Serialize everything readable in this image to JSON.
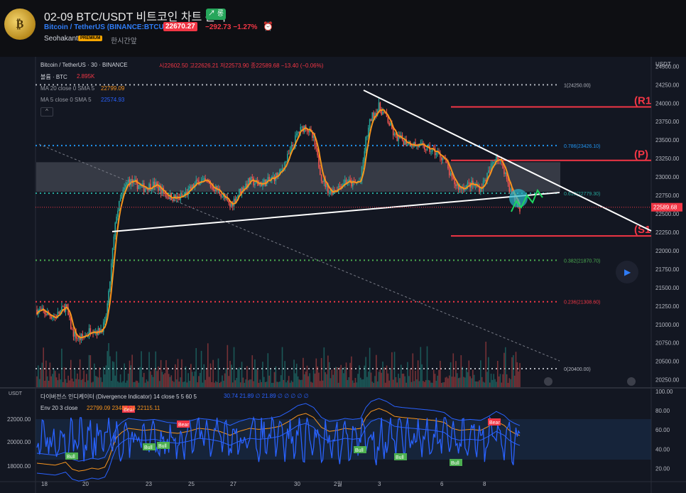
{
  "header": {
    "avatar_text": "₿",
    "title": "02-09 BTC/USDT 비트코인 차트 분석",
    "trend_badge": "↗ 롱",
    "symbol_line": "Bitcoin / TetherUS (BINANCE:BTCUSDT)",
    "last_price": "22670.27",
    "change": "−292.73  −1.27%",
    "alarm_icon": "⏰",
    "author": "Seohakant",
    "premium_label": "PREMIUM",
    "time_ago": "한시간앞"
  },
  "legend": {
    "instrument": "Bitcoin / TetherUS · 30 · BINANCE",
    "ohlc": "시22602.50 고22626.21 저22573.90 종22589.68 −13.40 (−0.06%)",
    "volume_label": "볼륨 · BTC",
    "volume_value": "2.895K",
    "ma20_label": "MA 20 close 0 SMA 5",
    "ma20_value": "22799.09",
    "ma5_label": "MA 5 close 0 SMA 5",
    "ma5_value": "22574.93",
    "collapse_icon": "^"
  },
  "indicator": {
    "name": "다이버전스 인디케이터 (Divergence Indicator)  14 close 5 5 60 5",
    "values": "30.74  21.89  ∅  21.89  ∅  ∅  ∅  ∅  ∅",
    "env_label": "Env 20 3 close",
    "env_values": "22799.09  23483.06  22115.11"
  },
  "colors": {
    "accent": "#f7a600",
    "up": "#26a69a",
    "down": "#f23645",
    "ma": "#f7941d",
    "osc": "#2962ff",
    "bg": "#131722",
    "price_tag": "#f23645"
  },
  "chart_data": {
    "type": "candlestick",
    "price_axis_label": "USDT",
    "ylim": [
      20150,
      24600
    ],
    "y_ticks": [
      "24500.00",
      "24250.00",
      "24000.00",
      "23750.00",
      "23500.00",
      "23250.00",
      "23000.00",
      "22750.00",
      "22500.00",
      "22250.00",
      "22000.00",
      "21750.00",
      "21500.00",
      "21250.00",
      "21000.00",
      "20750.00",
      "20500.00",
      "20250.00"
    ],
    "current_price_label": "22589.68",
    "current_price": 22589.68,
    "x_ticks": [
      "18",
      "20",
      "23",
      "25",
      "27",
      "30",
      "2월",
      "3",
      "6",
      "8"
    ],
    "fib_levels": [
      {
        "label": "1(24250.00)",
        "value": 24250.0
      },
      {
        "label": "0.786(23426.10)",
        "value": 23426.1
      },
      {
        "label": "0.618(22779.30)",
        "value": 22779.3
      },
      {
        "label": "0.382(21870.70)",
        "value": 21870.7
      },
      {
        "label": "0.236(21308.60)",
        "value": 21308.6
      },
      {
        "label": "0(20400.00)",
        "value": 20400.0
      }
    ],
    "zones": [
      {
        "label": "(R1",
        "value": 23950
      },
      {
        "label": "(P)",
        "value": 23225
      },
      {
        "label": "(S1",
        "value": 22200
      }
    ],
    "box": {
      "low": 22800,
      "high": 23200
    },
    "price_series_anchor": [
      [
        0,
        21200
      ],
      [
        14,
        21100
      ],
      [
        22,
        21250
      ],
      [
        27,
        20900
      ],
      [
        32,
        20800
      ],
      [
        37,
        20850
      ],
      [
        42,
        20950
      ],
      [
        47,
        20900
      ],
      [
        52,
        21000
      ],
      [
        55,
        21400
      ],
      [
        58,
        22000
      ],
      [
        61,
        22500
      ],
      [
        65,
        22750
      ],
      [
        70,
        22950
      ],
      [
        76,
        22900
      ],
      [
        82,
        22850
      ],
      [
        90,
        22900
      ],
      [
        100,
        22750
      ],
      [
        108,
        22700
      ],
      [
        116,
        22800
      ],
      [
        124,
        22950
      ],
      [
        132,
        22900
      ],
      [
        140,
        22800
      ],
      [
        148,
        22600
      ],
      [
        155,
        22800
      ],
      [
        163,
        22950
      ],
      [
        170,
        22900
      ],
      [
        178,
        22950
      ],
      [
        186,
        23050
      ],
      [
        193,
        23300
      ],
      [
        200,
        23600
      ],
      [
        206,
        23700
      ],
      [
        212,
        23500
      ],
      [
        218,
        23000
      ],
      [
        224,
        22800
      ],
      [
        230,
        22850
      ],
      [
        236,
        22950
      ],
      [
        242,
        22900
      ],
      [
        248,
        22950
      ],
      [
        252,
        23500
      ],
      [
        256,
        23800
      ],
      [
        262,
        23950
      ],
      [
        268,
        23800
      ],
      [
        274,
        23550
      ],
      [
        280,
        23500
      ],
      [
        288,
        23450
      ],
      [
        296,
        23400
      ],
      [
        304,
        23350
      ],
      [
        312,
        23250
      ],
      [
        318,
        22950
      ],
      [
        324,
        22850
      ],
      [
        332,
        22900
      ],
      [
        340,
        22850
      ],
      [
        346,
        23050
      ],
      [
        352,
        23300
      ],
      [
        358,
        23100
      ],
      [
        362,
        22850
      ],
      [
        366,
        22700
      ],
      [
        370,
        22590
      ]
    ],
    "osc_axis_ticks": [
      "100.00",
      "80.00",
      "60.00",
      "40.00",
      "20.00"
    ],
    "osc_left_ticks": [
      "USDT",
      "22000.00",
      "20000.00",
      "18000.00"
    ],
    "divergence_labels": [
      "Bull",
      "Bull",
      "Bull",
      "Bear",
      "Bear",
      "Bull",
      "Bull",
      "Bull",
      "Bear"
    ]
  }
}
